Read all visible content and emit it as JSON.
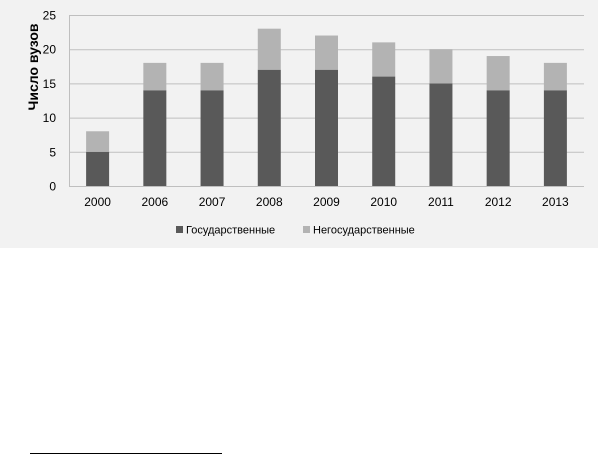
{
  "chart_data": {
    "type": "bar",
    "stacked": true,
    "categories": [
      "2000",
      "2006",
      "2007",
      "2008",
      "2009",
      "2010",
      "2011",
      "2012",
      "2013"
    ],
    "series": [
      {
        "name": "Государственные",
        "values": [
          5,
          14,
          14,
          17,
          17,
          16,
          15,
          14,
          14
        ],
        "color": "#595959"
      },
      {
        "name": "Негосударственные",
        "values": [
          3,
          4,
          4,
          6,
          5,
          5,
          5,
          5,
          4
        ],
        "color": "#b3b3b3"
      }
    ],
    "ylabel": "Число вузов",
    "ylim": [
      0,
      25
    ],
    "yticks": [
      0,
      5,
      10,
      15,
      20,
      25
    ],
    "grid": true,
    "legend": "bottom"
  },
  "colors": {
    "panel_background": "#f2f2f2",
    "gridline": "#bfbfbf"
  }
}
